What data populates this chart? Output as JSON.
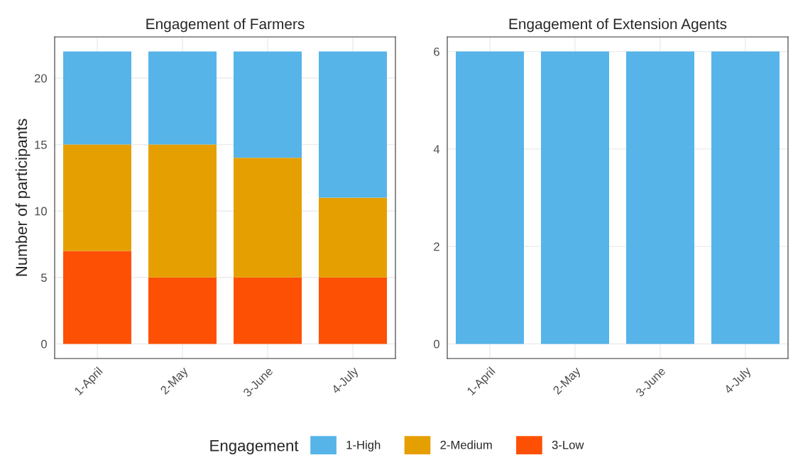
{
  "chart_data": [
    {
      "type": "bar",
      "title": "Engagement of Farmers",
      "ylabel": "Number of participants",
      "categories": [
        "1-April",
        "2-May",
        "3-June",
        "4-July"
      ],
      "stacked": true,
      "series": [
        {
          "name": "3-Low",
          "color": "#fe5005",
          "values": [
            7,
            5,
            5,
            5
          ]
        },
        {
          "name": "2-Medium",
          "color": "#e69f00",
          "values": [
            8,
            10,
            9,
            6
          ]
        },
        {
          "name": "1-High",
          "color": "#56b4e9",
          "values": [
            7,
            7,
            8,
            11
          ]
        }
      ],
      "ylim": [
        -1.1,
        23.1
      ],
      "yticks": [
        0,
        5,
        10,
        15,
        20
      ],
      "grid": true,
      "legend": "bottom",
      "legend_title": "Engagement"
    },
    {
      "type": "bar",
      "title": "Engagement of Extension Agents",
      "categories": [
        "1-April",
        "2-May",
        "3-June",
        "4-July"
      ],
      "stacked": true,
      "series": [
        {
          "color": "#56b4e9",
          "values": [
            6,
            6,
            6,
            6
          ]
        }
      ],
      "ylim": [
        -0.3,
        6.3
      ],
      "yticks": [
        0,
        2,
        4,
        6
      ],
      "grid": true
    }
  ]
}
